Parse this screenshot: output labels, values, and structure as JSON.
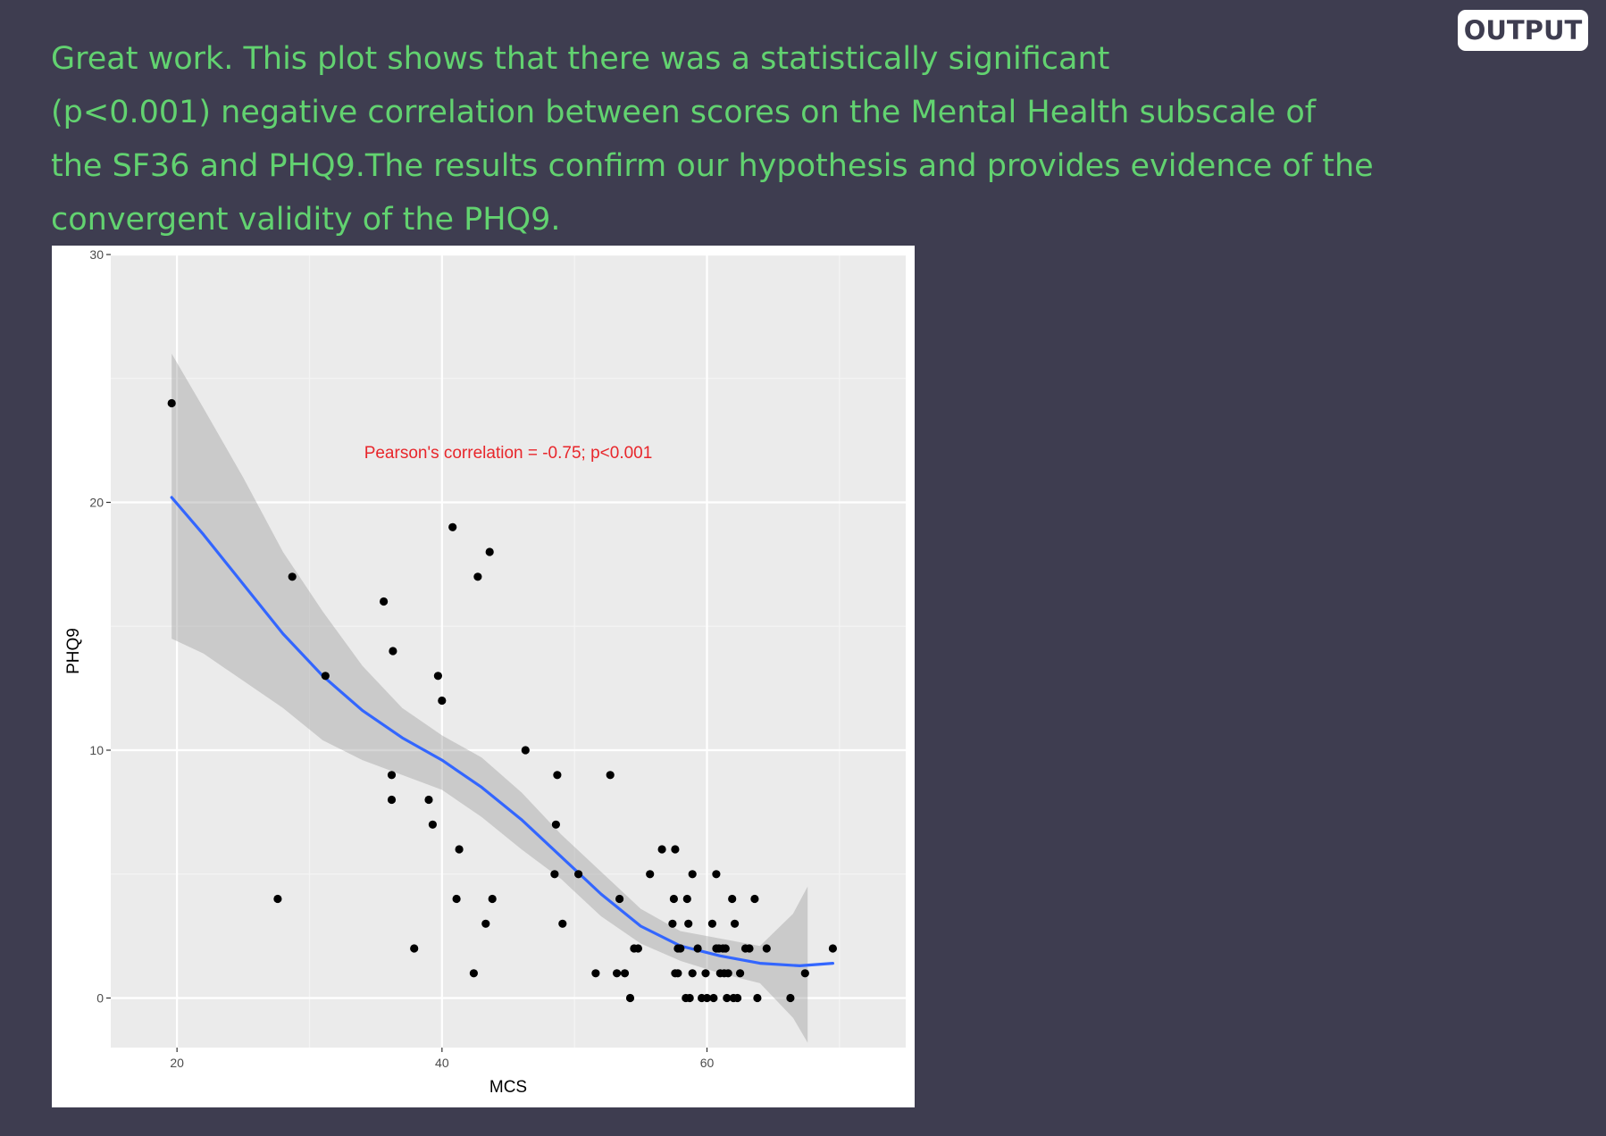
{
  "badge": {
    "label": "OUTPUT"
  },
  "narrative": {
    "lines": [
      "Great work. This plot shows that there was a statistically significant",
      "(p<0.001) negative correlation between scores on the Mental Health subscale of",
      "the SF36 and PHQ9.The results confirm our hypothesis and provides evidence of the",
      "convergent validity of the PHQ9."
    ]
  },
  "colors": {
    "background": "#3e3d50",
    "narrative": "#62d270",
    "panel": "#ebebeb",
    "grid_major": "#ffffff",
    "grid_minor": "#f4f4f4",
    "points": "#000000",
    "smooth_line": "#3366ff",
    "confidence_band": "#999999",
    "annotation": "#e8262b"
  },
  "chart_data": {
    "type": "scatter",
    "title": "",
    "xlabel": "MCS",
    "ylabel": "PHQ9",
    "xlim": [
      15,
      75
    ],
    "ylim": [
      -2,
      30
    ],
    "x_ticks": [
      20,
      40,
      60
    ],
    "y_ticks": [
      0,
      10,
      20,
      30
    ],
    "grid": true,
    "legend": "none",
    "annotation": {
      "text": "Pearson's correlation = -0.75; p<0.001",
      "x": 45,
      "y": 22
    },
    "points": [
      [
        19.6,
        24
      ],
      [
        27.6,
        4
      ],
      [
        28.7,
        17
      ],
      [
        31.2,
        13
      ],
      [
        35.6,
        16
      ],
      [
        36.3,
        14
      ],
      [
        36.2,
        9
      ],
      [
        36.2,
        8
      ],
      [
        37.9,
        2
      ],
      [
        39.0,
        8
      ],
      [
        39.3,
        7
      ],
      [
        39.7,
        13
      ],
      [
        40.0,
        12
      ],
      [
        40.8,
        19
      ],
      [
        41.1,
        4
      ],
      [
        41.3,
        6
      ],
      [
        42.4,
        1
      ],
      [
        42.7,
        17
      ],
      [
        43.3,
        3
      ],
      [
        43.6,
        18
      ],
      [
        43.8,
        4
      ],
      [
        46.3,
        10
      ],
      [
        48.5,
        5
      ],
      [
        48.6,
        7
      ],
      [
        48.7,
        9
      ],
      [
        49.1,
        3
      ],
      [
        50.3,
        5
      ],
      [
        51.6,
        1
      ],
      [
        52.7,
        9
      ],
      [
        53.2,
        1
      ],
      [
        53.4,
        4
      ],
      [
        53.8,
        1
      ],
      [
        54.2,
        0
      ],
      [
        54.5,
        2
      ],
      [
        54.8,
        2
      ],
      [
        55.7,
        5
      ],
      [
        56.6,
        6
      ],
      [
        57.4,
        3
      ],
      [
        57.5,
        4
      ],
      [
        57.6,
        6
      ],
      [
        57.6,
        1
      ],
      [
        57.8,
        2
      ],
      [
        57.8,
        1
      ],
      [
        58.0,
        2
      ],
      [
        58.4,
        0
      ],
      [
        58.5,
        4
      ],
      [
        58.6,
        3
      ],
      [
        58.7,
        0
      ],
      [
        58.9,
        5
      ],
      [
        58.9,
        1
      ],
      [
        59.3,
        2
      ],
      [
        59.6,
        0
      ],
      [
        59.9,
        1
      ],
      [
        60.0,
        0
      ],
      [
        60.4,
        3
      ],
      [
        60.5,
        0
      ],
      [
        60.7,
        5
      ],
      [
        60.7,
        2
      ],
      [
        60.9,
        2
      ],
      [
        61.0,
        1
      ],
      [
        61.2,
        2
      ],
      [
        61.3,
        1
      ],
      [
        61.4,
        2
      ],
      [
        61.5,
        0
      ],
      [
        61.6,
        1
      ],
      [
        61.9,
        4
      ],
      [
        62.0,
        0
      ],
      [
        62.1,
        3
      ],
      [
        62.3,
        0
      ],
      [
        62.5,
        1
      ],
      [
        62.9,
        2
      ],
      [
        63.2,
        2
      ],
      [
        63.6,
        4
      ],
      [
        63.8,
        0
      ],
      [
        64.5,
        2
      ],
      [
        66.3,
        0
      ],
      [
        67.4,
        1
      ],
      [
        69.5,
        2
      ]
    ],
    "smooth_line": [
      [
        19.6,
        20.2
      ],
      [
        22,
        18.7
      ],
      [
        25,
        16.7
      ],
      [
        28,
        14.7
      ],
      [
        31,
        13.0
      ],
      [
        34,
        11.6
      ],
      [
        37,
        10.5
      ],
      [
        40,
        9.6
      ],
      [
        43,
        8.5
      ],
      [
        46,
        7.2
      ],
      [
        49,
        5.7
      ],
      [
        52,
        4.2
      ],
      [
        55,
        2.9
      ],
      [
        58,
        2.1
      ],
      [
        61,
        1.7
      ],
      [
        64,
        1.4
      ],
      [
        67,
        1.3
      ],
      [
        69.5,
        1.4
      ]
    ],
    "confidence_band": {
      "upper": [
        [
          19.6,
          26.0
        ],
        [
          22,
          23.8
        ],
        [
          25,
          21.0
        ],
        [
          28,
          18.0
        ],
        [
          31,
          15.6
        ],
        [
          34,
          13.4
        ],
        [
          37,
          11.7
        ],
        [
          40,
          10.6
        ],
        [
          43,
          9.7
        ],
        [
          46,
          8.3
        ],
        [
          49,
          6.6
        ],
        [
          52,
          5.1
        ],
        [
          55,
          3.6
        ],
        [
          58,
          2.7
        ],
        [
          61,
          2.4
        ],
        [
          64,
          2.1
        ],
        [
          66.5,
          3.4
        ],
        [
          67.6,
          4.5
        ]
      ],
      "lower": [
        [
          19.6,
          14.5
        ],
        [
          22,
          13.9
        ],
        [
          25,
          12.8
        ],
        [
          28,
          11.7
        ],
        [
          31,
          10.4
        ],
        [
          34,
          9.6
        ],
        [
          37,
          9.0
        ],
        [
          40,
          8.4
        ],
        [
          43,
          7.3
        ],
        [
          46,
          6.0
        ],
        [
          49,
          4.8
        ],
        [
          52,
          3.3
        ],
        [
          55,
          2.2
        ],
        [
          58,
          1.5
        ],
        [
          61,
          1.0
        ],
        [
          64,
          0.6
        ],
        [
          66.5,
          -0.8
        ],
        [
          67.6,
          -1.8
        ]
      ]
    }
  }
}
